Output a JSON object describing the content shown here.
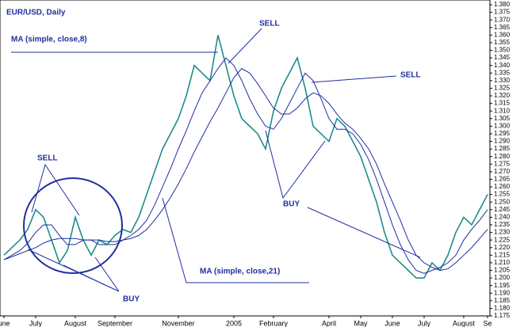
{
  "chart_data": {
    "type": "line",
    "title": "EUR/USD, Daily",
    "categories": [
      "une",
      null,
      null,
      null,
      "July",
      null,
      null,
      null,
      null,
      "August",
      null,
      null,
      null,
      null,
      "September",
      null,
      null,
      null,
      null,
      null,
      null,
      null,
      "November",
      null,
      null,
      null,
      null,
      null,
      null,
      "2005",
      null,
      null,
      null,
      null,
      "February",
      null,
      null,
      null,
      null,
      null,
      null,
      "April",
      null,
      null,
      null,
      "May",
      null,
      null,
      null,
      "June",
      null,
      null,
      null,
      "July",
      null,
      null,
      null,
      null,
      "August",
      null,
      null,
      "Se"
    ],
    "series": [
      {
        "name": "EUR/USD",
        "color": "#1f8c8c",
        "values": [
          1.215,
          1.22,
          1.225,
          1.232,
          1.245,
          1.24,
          1.225,
          1.21,
          1.218,
          1.24,
          1.225,
          1.215,
          1.225,
          1.222,
          1.228,
          1.232,
          1.23,
          1.24,
          1.255,
          1.27,
          1.285,
          1.295,
          1.305,
          1.32,
          1.34,
          1.335,
          1.33,
          1.36,
          1.34,
          1.32,
          1.305,
          1.3,
          1.295,
          1.285,
          1.31,
          1.325,
          1.335,
          1.345,
          1.325,
          1.3,
          1.295,
          1.29,
          1.305,
          1.3,
          1.29,
          1.28,
          1.265,
          1.25,
          1.23,
          1.215,
          1.21,
          1.205,
          1.2,
          1.2,
          1.21,
          1.205,
          1.215,
          1.23,
          1.24,
          1.235,
          1.245,
          1.255
        ]
      },
      {
        "name": "MA (simple, close,8)",
        "color": "#1f2f9f",
        "values": [
          1.212,
          1.215,
          1.218,
          1.223,
          1.23,
          1.235,
          1.235,
          1.228,
          1.222,
          1.222,
          1.225,
          1.225,
          1.222,
          1.222,
          1.222,
          1.225,
          1.228,
          1.232,
          1.238,
          1.248,
          1.26,
          1.272,
          1.285,
          1.297,
          1.31,
          1.322,
          1.33,
          1.338,
          1.345,
          1.34,
          1.33,
          1.318,
          1.308,
          1.3,
          1.298,
          1.305,
          1.315,
          1.325,
          1.335,
          1.33,
          1.318,
          1.305,
          1.298,
          1.298,
          1.295,
          1.288,
          1.278,
          1.265,
          1.25,
          1.235,
          1.222,
          1.212,
          1.205,
          1.203,
          1.205,
          1.207,
          1.21,
          1.215,
          1.225,
          1.232,
          1.238,
          1.245
        ]
      },
      {
        "name": "MA (simple, close,21)",
        "color": "#1f2f9f",
        "values": [
          1.212,
          1.214,
          1.216,
          1.218,
          1.22,
          1.223,
          1.225,
          1.226,
          1.226,
          1.226,
          1.225,
          1.225,
          1.225,
          1.224,
          1.224,
          1.225,
          1.226,
          1.228,
          1.232,
          1.238,
          1.245,
          1.253,
          1.262,
          1.272,
          1.283,
          1.293,
          1.303,
          1.312,
          1.322,
          1.332,
          1.338,
          1.335,
          1.328,
          1.32,
          1.312,
          1.308,
          1.308,
          1.312,
          1.318,
          1.322,
          1.32,
          1.315,
          1.308,
          1.302,
          1.298,
          1.292,
          1.285,
          1.275,
          1.262,
          1.25,
          1.238,
          1.225,
          1.215,
          1.21,
          1.207,
          1.205,
          1.206,
          1.21,
          1.215,
          1.22,
          1.226,
          1.232
        ]
      }
    ],
    "annotations": [
      "SELL",
      "SELL",
      "SELL",
      "BUY",
      "BUY"
    ],
    "ylim": [
      1.175,
      1.38
    ],
    "yticks": [
      1.175,
      {
        "value": 1.18,
        "label": "1.180"
      },
      1.185,
      {
        "value": 1.19,
        "label": "1.190"
      },
      1.195,
      {
        "value": 1.2,
        "label": "1.200"
      },
      1.205,
      {
        "value": 1.21,
        "label": "1.210"
      },
      1.215,
      {
        "value": 1.22,
        "label": "1.220"
      },
      1.225,
      {
        "value": 1.23,
        "label": "1.230"
      },
      1.235,
      {
        "value": 1.24,
        "label": "1.240"
      },
      1.245,
      {
        "value": 1.25,
        "label": "1.250"
      },
      1.255,
      {
        "value": 1.26,
        "label": "1.260"
      },
      1.265,
      {
        "value": 1.27,
        "label": "1.270"
      },
      1.275,
      {
        "value": 1.28,
        "label": "1.280"
      },
      1.285,
      {
        "value": 1.29,
        "label": "1.290"
      },
      1.295,
      {
        "value": 1.3,
        "label": "1.300"
      },
      1.305,
      {
        "value": 1.31,
        "label": "1.310"
      },
      1.315,
      {
        "value": 1.32,
        "label": "1.320"
      },
      1.325,
      {
        "value": 1.33,
        "label": "1.330"
      },
      1.335,
      {
        "value": 1.34,
        "label": "1.340"
      },
      1.345,
      {
        "value": 1.35,
        "label": "1.350"
      },
      1.355,
      {
        "value": 1.36,
        "label": "1.360"
      },
      1.365,
      {
        "value": 1.37,
        "label": "1.370"
      },
      1.375,
      {
        "value": 1.38,
        "label": "1.380"
      }
    ],
    "grid": false
  }
}
